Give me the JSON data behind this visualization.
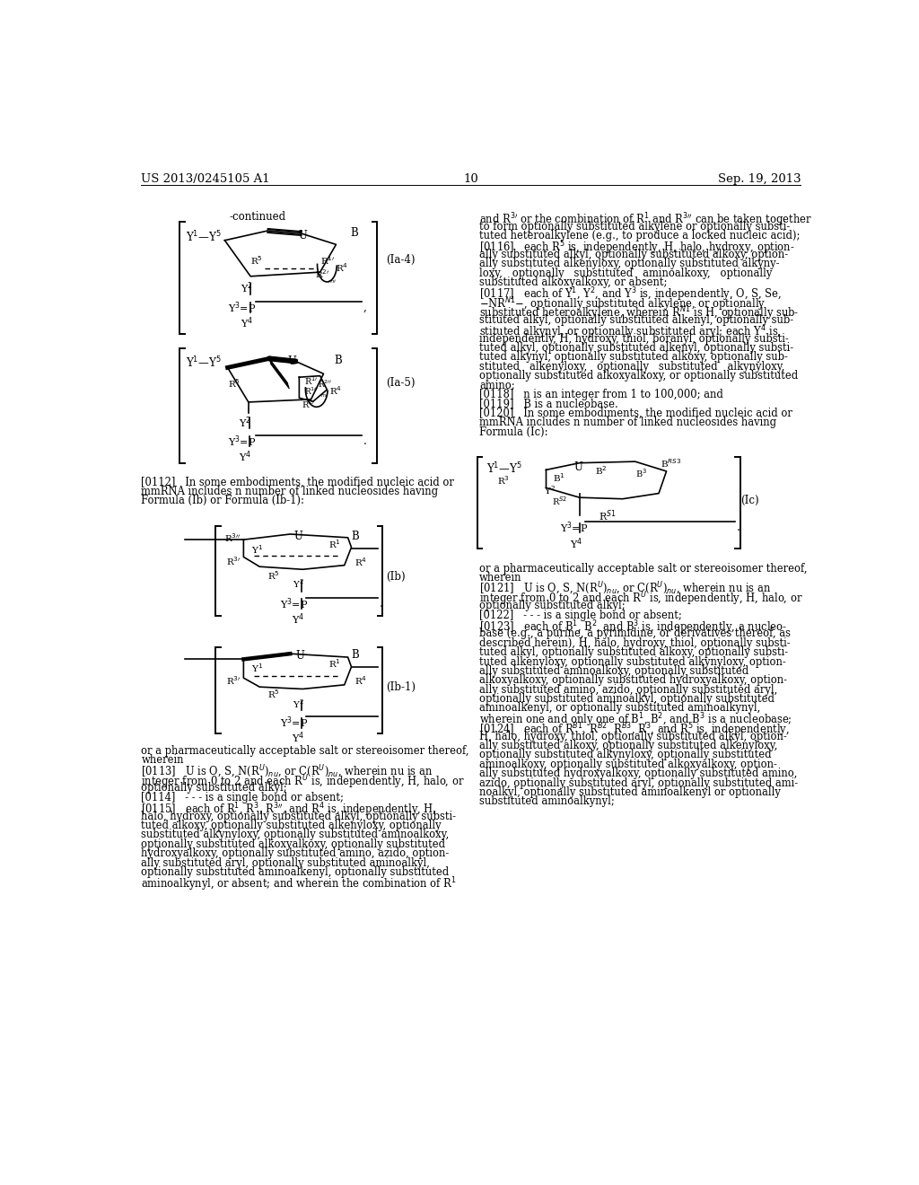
{
  "page_number": "10",
  "patent_number": "US 2013/0245105 A1",
  "patent_date": "Sep. 19, 2013",
  "bg_color": "#ffffff"
}
